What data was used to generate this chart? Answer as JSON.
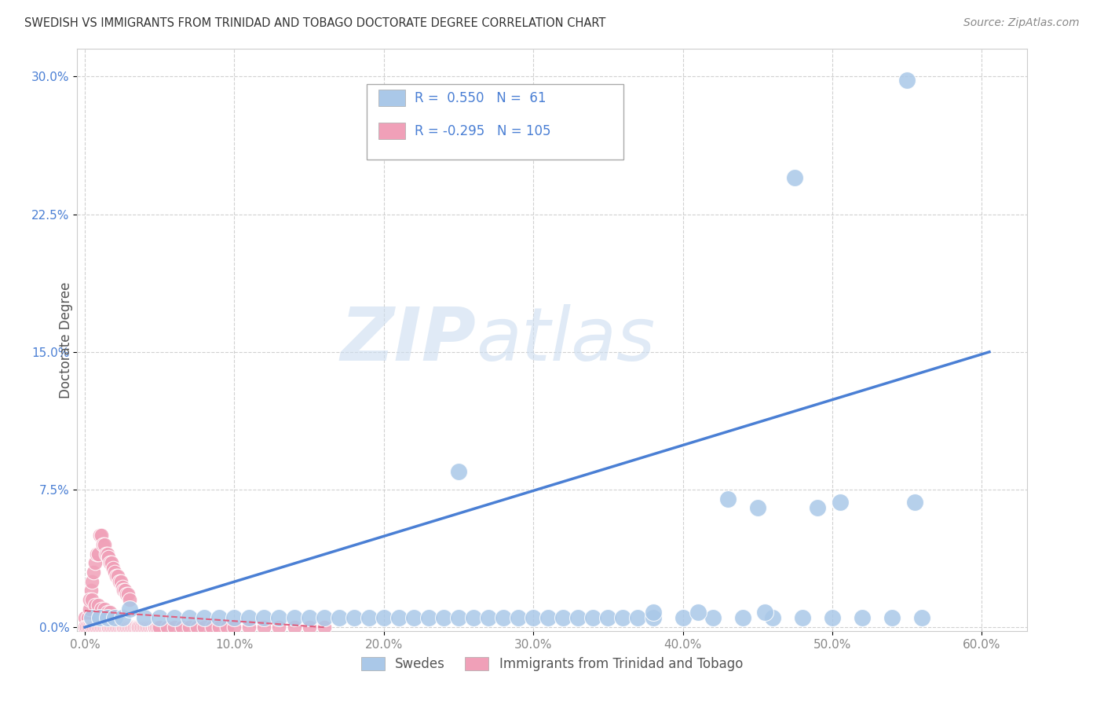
{
  "title": "SWEDISH VS IMMIGRANTS FROM TRINIDAD AND TOBAGO DOCTORATE DEGREE CORRELATION CHART",
  "source": "Source: ZipAtlas.com",
  "ylabel_label": "Doctorate Degree",
  "xlim": [
    -0.005,
    0.63
  ],
  "ylim": [
    -0.002,
    0.315
  ],
  "yticks": [
    0.0,
    0.075,
    0.15,
    0.225,
    0.3
  ],
  "xticks": [
    0.0,
    0.1,
    0.2,
    0.3,
    0.4,
    0.5,
    0.6
  ],
  "swedes_R": 0.55,
  "swedes_N": 61,
  "tt_R": -0.295,
  "tt_N": 105,
  "swedes_color": "#aac8e8",
  "tt_color": "#f0a0b8",
  "line_color_swedes": "#4a7fd4",
  "line_color_tt": "#e06080",
  "legend_label_swedes": "Swedes",
  "legend_label_tt": "Immigrants from Trinidad and Tobago",
  "watermark_zip": "ZIP",
  "watermark_atlas": "atlas",
  "background_color": "#ffffff",
  "grid_color": "#cccccc",
  "title_color": "#333333",
  "source_color": "#888888",
  "tick_color_x": "#888888",
  "tick_color_y": "#4a7fd4",
  "ylabel_color": "#555555",
  "legend_box_color": "#dddddd",
  "line_sw_x0": 0.0,
  "line_sw_y0": 0.0,
  "line_sw_x1": 0.605,
  "line_sw_y1": 0.15,
  "line_tt_x0": 0.0,
  "line_tt_y0": 0.009,
  "line_tt_x1": 0.16,
  "line_tt_y1": 0.0,
  "swedes_pts": [
    [
      0.005,
      0.005
    ],
    [
      0.01,
      0.005
    ],
    [
      0.015,
      0.005
    ],
    [
      0.02,
      0.005
    ],
    [
      0.025,
      0.005
    ],
    [
      0.03,
      0.01
    ],
    [
      0.04,
      0.005
    ],
    [
      0.05,
      0.005
    ],
    [
      0.06,
      0.005
    ],
    [
      0.07,
      0.005
    ],
    [
      0.08,
      0.005
    ],
    [
      0.09,
      0.005
    ],
    [
      0.1,
      0.005
    ],
    [
      0.11,
      0.005
    ],
    [
      0.12,
      0.005
    ],
    [
      0.13,
      0.005
    ],
    [
      0.14,
      0.005
    ],
    [
      0.15,
      0.005
    ],
    [
      0.16,
      0.005
    ],
    [
      0.17,
      0.005
    ],
    [
      0.18,
      0.005
    ],
    [
      0.19,
      0.005
    ],
    [
      0.2,
      0.005
    ],
    [
      0.21,
      0.005
    ],
    [
      0.22,
      0.005
    ],
    [
      0.23,
      0.005
    ],
    [
      0.24,
      0.005
    ],
    [
      0.25,
      0.005
    ],
    [
      0.26,
      0.005
    ],
    [
      0.27,
      0.005
    ],
    [
      0.28,
      0.005
    ],
    [
      0.29,
      0.005
    ],
    [
      0.3,
      0.005
    ],
    [
      0.31,
      0.005
    ],
    [
      0.32,
      0.005
    ],
    [
      0.33,
      0.005
    ],
    [
      0.34,
      0.005
    ],
    [
      0.35,
      0.005
    ],
    [
      0.36,
      0.005
    ],
    [
      0.37,
      0.005
    ],
    [
      0.38,
      0.005
    ],
    [
      0.4,
      0.005
    ],
    [
      0.42,
      0.005
    ],
    [
      0.44,
      0.005
    ],
    [
      0.46,
      0.005
    ],
    [
      0.48,
      0.005
    ],
    [
      0.5,
      0.005
    ],
    [
      0.52,
      0.005
    ],
    [
      0.54,
      0.005
    ],
    [
      0.56,
      0.005
    ],
    [
      0.25,
      0.085
    ],
    [
      0.43,
      0.07
    ],
    [
      0.45,
      0.065
    ],
    [
      0.475,
      0.245
    ],
    [
      0.55,
      0.298
    ],
    [
      0.38,
      0.008
    ],
    [
      0.41,
      0.008
    ],
    [
      0.455,
      0.008
    ],
    [
      0.49,
      0.065
    ],
    [
      0.505,
      0.068
    ],
    [
      0.555,
      0.068
    ]
  ],
  "tt_pts": [
    [
      0.0,
      0.005
    ],
    [
      0.002,
      0.005
    ],
    [
      0.003,
      0.01
    ],
    [
      0.004,
      0.02
    ],
    [
      0.005,
      0.025
    ],
    [
      0.006,
      0.03
    ],
    [
      0.007,
      0.035
    ],
    [
      0.008,
      0.04
    ],
    [
      0.009,
      0.04
    ],
    [
      0.01,
      0.05
    ],
    [
      0.011,
      0.05
    ],
    [
      0.012,
      0.045
    ],
    [
      0.013,
      0.045
    ],
    [
      0.014,
      0.04
    ],
    [
      0.015,
      0.04
    ],
    [
      0.016,
      0.038
    ],
    [
      0.017,
      0.035
    ],
    [
      0.018,
      0.035
    ],
    [
      0.019,
      0.032
    ],
    [
      0.02,
      0.03
    ],
    [
      0.021,
      0.028
    ],
    [
      0.022,
      0.028
    ],
    [
      0.023,
      0.025
    ],
    [
      0.024,
      0.025
    ],
    [
      0.025,
      0.022
    ],
    [
      0.026,
      0.02
    ],
    [
      0.027,
      0.02
    ],
    [
      0.028,
      0.018
    ],
    [
      0.029,
      0.018
    ],
    [
      0.03,
      0.015
    ],
    [
      0.0,
      0.0
    ],
    [
      0.001,
      0.0
    ],
    [
      0.002,
      0.0
    ],
    [
      0.003,
      0.0
    ],
    [
      0.004,
      0.0
    ],
    [
      0.005,
      0.0
    ],
    [
      0.006,
      0.0
    ],
    [
      0.007,
      0.0
    ],
    [
      0.008,
      0.0
    ],
    [
      0.009,
      0.0
    ],
    [
      0.01,
      0.0
    ],
    [
      0.011,
      0.0
    ],
    [
      0.012,
      0.0
    ],
    [
      0.013,
      0.0
    ],
    [
      0.014,
      0.0
    ],
    [
      0.015,
      0.0
    ],
    [
      0.016,
      0.0
    ],
    [
      0.017,
      0.0
    ],
    [
      0.018,
      0.0
    ],
    [
      0.019,
      0.0
    ],
    [
      0.02,
      0.0
    ],
    [
      0.021,
      0.0
    ],
    [
      0.022,
      0.0
    ],
    [
      0.023,
      0.0
    ],
    [
      0.024,
      0.0
    ],
    [
      0.025,
      0.0
    ],
    [
      0.026,
      0.0
    ],
    [
      0.027,
      0.0
    ],
    [
      0.028,
      0.0
    ],
    [
      0.029,
      0.0
    ],
    [
      0.03,
      0.0
    ],
    [
      0.031,
      0.0
    ],
    [
      0.032,
      0.0
    ],
    [
      0.033,
      0.0
    ],
    [
      0.034,
      0.0
    ],
    [
      0.035,
      0.0
    ],
    [
      0.036,
      0.0
    ],
    [
      0.037,
      0.0
    ],
    [
      0.038,
      0.0
    ],
    [
      0.039,
      0.0
    ],
    [
      0.04,
      0.0
    ],
    [
      0.041,
      0.0
    ],
    [
      0.042,
      0.0
    ],
    [
      0.043,
      0.0
    ],
    [
      0.044,
      0.0
    ],
    [
      0.045,
      0.0
    ],
    [
      0.046,
      0.0
    ],
    [
      0.047,
      0.0
    ],
    [
      0.048,
      0.0
    ],
    [
      0.049,
      0.0
    ],
    [
      0.05,
      0.0
    ],
    [
      0.055,
      0.0
    ],
    [
      0.06,
      0.0
    ],
    [
      0.065,
      0.0
    ],
    [
      0.07,
      0.0
    ],
    [
      0.075,
      0.0
    ],
    [
      0.08,
      0.0
    ],
    [
      0.085,
      0.0
    ],
    [
      0.09,
      0.0
    ],
    [
      0.095,
      0.0
    ],
    [
      0.1,
      0.0
    ],
    [
      0.11,
      0.0
    ],
    [
      0.12,
      0.0
    ],
    [
      0.13,
      0.0
    ],
    [
      0.14,
      0.0
    ],
    [
      0.15,
      0.0
    ],
    [
      0.16,
      0.0
    ],
    [
      0.003,
      0.015
    ],
    [
      0.005,
      0.015
    ],
    [
      0.007,
      0.012
    ],
    [
      0.009,
      0.012
    ],
    [
      0.011,
      0.01
    ],
    [
      0.013,
      0.01
    ],
    [
      0.015,
      0.008
    ],
    [
      0.017,
      0.008
    ]
  ]
}
